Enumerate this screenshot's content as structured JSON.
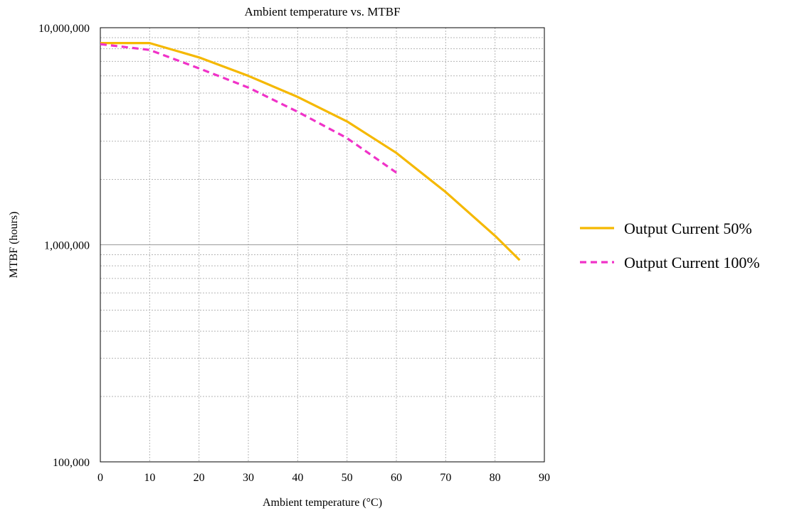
{
  "chart_data": {
    "type": "line",
    "title": "Ambient temperature vs. MTBF",
    "xlabel": "Ambient temperature (°C)",
    "ylabel": "MTBF (hours)",
    "xlim": [
      0,
      90
    ],
    "ylim": [
      100000,
      10000000
    ],
    "yscale": "log",
    "xticks": [
      0,
      10,
      20,
      30,
      40,
      50,
      60,
      70,
      80,
      90
    ],
    "xtick_labels": [
      "0",
      "10",
      "20",
      "30",
      "40",
      "50",
      "60",
      "70",
      "80",
      "90"
    ],
    "yticks": [
      100000,
      1000000,
      10000000
    ],
    "ytick_labels": [
      "100,000",
      "1,000,000",
      "10,000,000"
    ],
    "grid": true,
    "legend_position": "right",
    "series": [
      {
        "name": "Output Current 50%",
        "color": "#F5B800",
        "line_style": "solid",
        "x": [
          0,
          10,
          20,
          30,
          40,
          50,
          60,
          70,
          80,
          85
        ],
        "y": [
          8500000,
          8500000,
          7300000,
          6000000,
          4800000,
          3700000,
          2650000,
          1750000,
          1100000,
          850000
        ]
      },
      {
        "name": "Output Current 100%",
        "color": "#F032C8",
        "line_style": "dashed",
        "x": [
          0,
          10,
          20,
          30,
          40,
          50,
          60
        ],
        "y": [
          8400000,
          7900000,
          6500000,
          5300000,
          4100000,
          3100000,
          2150000
        ]
      }
    ]
  }
}
